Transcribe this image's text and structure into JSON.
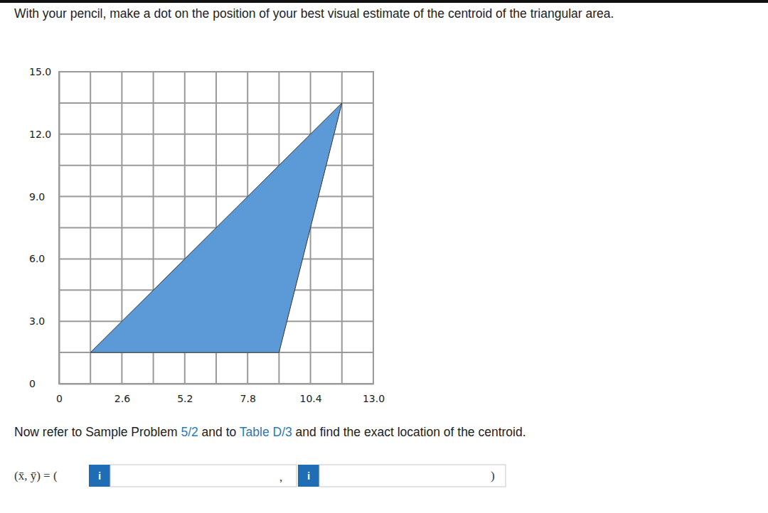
{
  "page": {
    "instruction": "With your pencil, make a dot on the position of your best visual estimate of the centroid of the triangular area.",
    "reference": [
      {
        "text": "Now refer to Sample Problem "
      },
      {
        "text": "5/2",
        "link": true
      },
      {
        "text": " and to "
      },
      {
        "text": "Table D/3",
        "link": true
      },
      {
        "text": " and find the exact location of the centroid."
      }
    ],
    "answer_label": "(x̄, ȳ) = (",
    "input_icon": "i",
    "separator": ",",
    "answer_close": ")"
  },
  "chart_data": {
    "type": "polygon",
    "x": [
      1.3,
      9.1,
      11.7
    ],
    "values": [
      1.5,
      1.5,
      13.5
    ],
    "color": "#5b9ad6",
    "xlim": [
      0,
      13
    ],
    "ylim": [
      0,
      15
    ],
    "xticks": [
      0,
      2.6,
      5.2,
      7.8,
      10.4,
      {
        "value": 13,
        "label": "13.0"
      }
    ],
    "yticks": [
      0,
      {
        "value": 3,
        "label": "3.0"
      },
      {
        "value": 6,
        "label": "6.0"
      },
      {
        "value": 9,
        "label": "9.0"
      },
      {
        "value": 12,
        "label": "12.0"
      },
      {
        "value": 15,
        "label": "15.0"
      }
    ],
    "x_minor_ticks": [
      1.3,
      3.9,
      6.5,
      9.1,
      11.7
    ],
    "y_minor_ticks": [
      1.5,
      4.5,
      7.5,
      10.5,
      13.5
    ],
    "grid": true
  }
}
